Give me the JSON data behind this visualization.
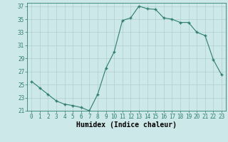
{
  "x": [
    0,
    1,
    2,
    3,
    4,
    5,
    6,
    7,
    8,
    9,
    10,
    11,
    12,
    13,
    14,
    15,
    16,
    17,
    18,
    19,
    20,
    21,
    22,
    23
  ],
  "y": [
    25.5,
    24.5,
    23.5,
    22.5,
    22.0,
    21.8,
    21.5,
    21.0,
    23.5,
    27.5,
    30.0,
    34.8,
    35.2,
    37.0,
    36.6,
    36.5,
    35.2,
    35.0,
    34.5,
    34.5,
    33.0,
    32.5,
    28.8,
    26.5
  ],
  "line_color": "#2e7d6e",
  "marker": "P",
  "marker_size": 2.5,
  "bg_color": "#cde8e8",
  "grid_color": "#b0cfcf",
  "xlabel": "Humidex (Indice chaleur)",
  "ylim": [
    21,
    37.5
  ],
  "yticks": [
    21,
    23,
    25,
    27,
    29,
    31,
    33,
    35,
    37
  ],
  "xticks": [
    0,
    1,
    2,
    3,
    4,
    5,
    6,
    7,
    8,
    9,
    10,
    11,
    12,
    13,
    14,
    15,
    16,
    17,
    18,
    19,
    20,
    21,
    22,
    23
  ],
  "tick_fontsize": 5.5,
  "xlabel_fontsize": 7
}
